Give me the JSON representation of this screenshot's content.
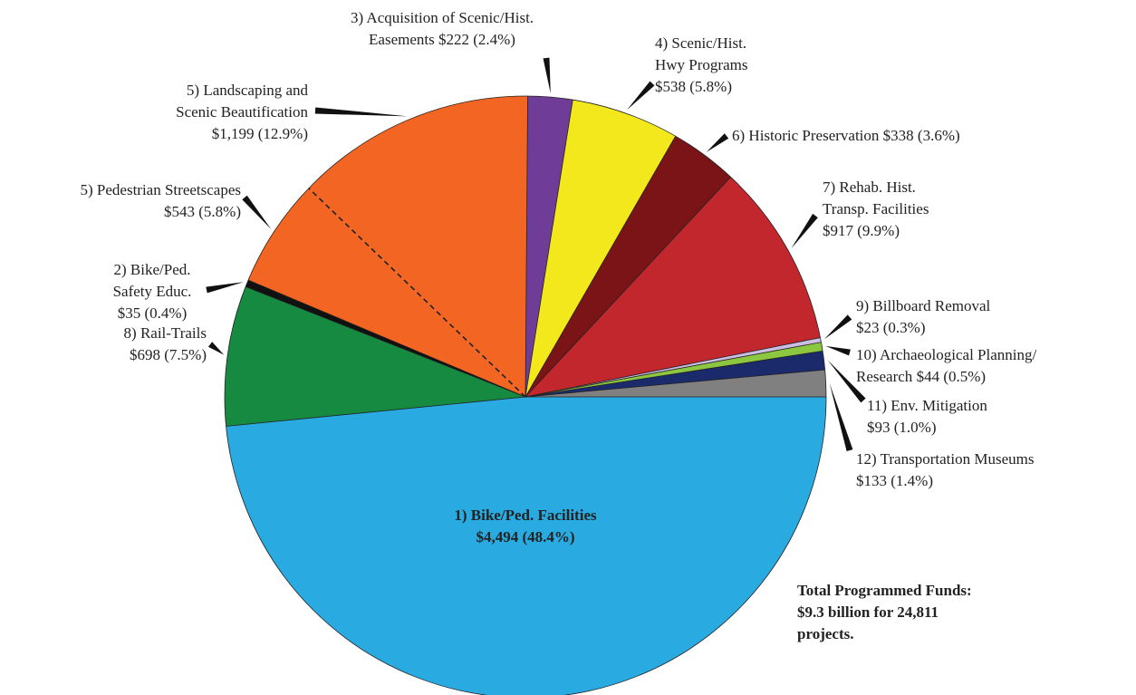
{
  "chart_data": {
    "type": "pie",
    "categories": [
      "1) Bike/Ped. Facilities",
      "8) Rail-Trails",
      "2) Bike/Ped. Safety Educ.",
      "5) Pedestrian Streetscapes",
      "5) Landscaping and Scenic Beautification",
      "3) Acquisition of Scenic/Hist. Easements",
      "4) Scenic/Hist. Hwy Programs",
      "6) Historic Preservation",
      "7) Rehab. Hist. Transp. Facilities",
      "9) Billboard Removal",
      "10) Archaeological Planning/ Research",
      "11) Env. Mitigation",
      "12) Transportation Museums"
    ],
    "values": [
      4494,
      698,
      35,
      543,
      1199,
      222,
      538,
      338,
      917,
      23,
      44,
      93,
      133
    ],
    "value_labels": [
      "$4,494 (48.4%)",
      "$698 (7.5%)",
      "$35 (0.4%)",
      "$543 (5.8%)",
      "$1,199 (12.9%)",
      "$222 (2.4%)",
      "$538 (5.8%)",
      "$338 (3.6%)",
      "$917 (9.9%)",
      "$23 (0.3%)",
      "$44 (0.5%)",
      "$93 (1.0%)",
      "$133 (1.4%)"
    ],
    "colors": [
      "#29abe2",
      "#168a40",
      "#111111",
      "#f26522",
      "#f26522",
      "#6f3c97",
      "#f2e81c",
      "#7a1416",
      "#c1272d",
      "#cbbde3",
      "#8dc63f",
      "#1b2a6b",
      "#808080"
    ],
    "annotation": "Total Programmed Funds: $9.3 billion for 24,811 projects."
  }
}
